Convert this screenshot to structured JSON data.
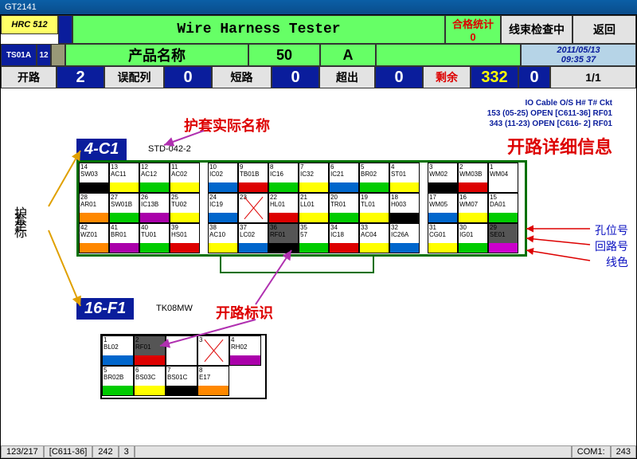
{
  "title_bar": "GT2141",
  "row1": {
    "hrc": "HRC 512",
    "tester": "Wire Harness Tester",
    "pass_lbl": "合格统计",
    "pass_val": "0",
    "status": "线束检查中",
    "back": "返回"
  },
  "row2": {
    "ts": "TS01A",
    "tsno": "12",
    "prod_lbl": "产品名称",
    "prod_val": "50",
    "prod_amp": "A",
    "date": "2011/05/13",
    "time": "09:35 37"
  },
  "stats": {
    "open_lbl": "开路",
    "open": "2",
    "miswire_lbl": "误配列",
    "miswire": "0",
    "short_lbl": "短路",
    "short": "0",
    "extra_lbl": "超出",
    "extra": "0",
    "remain_lbl": "剩余",
    "remain": "332",
    "remain2": "0",
    "page": "1/1"
  },
  "annotations": {
    "sheath_name": "护套实际名称",
    "sheath_coord": "护套坐标",
    "open_detail": "开路详细信息",
    "open_mark": "开路标识",
    "hole_no": "孔位号",
    "circuit_no": "回路号",
    "wire_color": "线色"
  },
  "diag": {
    "hdr": "IO  Cable  O/S    H# T#  Ckt",
    "l1": "153 (05-25) OPEN  [C611-36] RF01",
    "l2": "343 (11-23) OPEN  [C616- 2] RF01"
  },
  "conn1": {
    "coord": "4-C1",
    "part": "STD-042-2"
  },
  "conn2": {
    "coord": "16-F1",
    "part": "TK08MW"
  },
  "pins1": [
    {
      "n": "14",
      "c": "SW03",
      "col": "#000"
    },
    {
      "n": "13",
      "c": "AC11",
      "col": "#ff0"
    },
    {
      "n": "12",
      "c": "AC12",
      "col": "#0c0"
    },
    {
      "n": "11",
      "c": "AC02",
      "col": "#ff0"
    },
    {
      "n": "10",
      "c": "IC02",
      "col": "#06c"
    },
    {
      "n": "9",
      "c": "TB01B",
      "col": "#d00"
    },
    {
      "n": "8",
      "c": "IC16",
      "col": "#0c0"
    },
    {
      "n": "7",
      "c": "IC32",
      "col": "#ff0"
    },
    {
      "n": "6",
      "c": "IC21",
      "col": "#06c"
    },
    {
      "n": "5",
      "c": "BR02",
      "col": "#0c0"
    },
    {
      "n": "4",
      "c": "ST01",
      "col": "#ff0"
    },
    {
      "n": "3",
      "c": "WM02",
      "col": "#000"
    },
    {
      "n": "2",
      "c": "WM03B",
      "col": "#d00"
    },
    {
      "n": "1",
      "c": "WM04",
      "col": "#fff"
    },
    {
      "n": "28",
      "c": "AR01",
      "col": "#f80"
    },
    {
      "n": "27",
      "c": "SW01B",
      "col": "#0c0"
    },
    {
      "n": "26",
      "c": "IC13B",
      "col": "#a0a"
    },
    {
      "n": "25",
      "c": "TU02",
      "col": "#ff0"
    },
    {
      "n": "24",
      "c": "IC19",
      "col": "#06c"
    },
    {
      "n": "23",
      "c": "",
      "col": "#fff",
      "x": true
    },
    {
      "n": "22",
      "c": "HL01",
      "col": "#d00"
    },
    {
      "n": "21",
      "c": "LL01",
      "col": "#ff0"
    },
    {
      "n": "20",
      "c": "TR01",
      "col": "#0c0"
    },
    {
      "n": "19",
      "c": "TL01",
      "col": "#ff0"
    },
    {
      "n": "18",
      "c": "H003",
      "col": "#000"
    },
    {
      "n": "17",
      "c": "WM05",
      "col": "#06c"
    },
    {
      "n": "16",
      "c": "WM07",
      "col": "#ff0"
    },
    {
      "n": "15",
      "c": "DA01",
      "col": "#0c0"
    },
    {
      "n": "42",
      "c": "WZ01",
      "col": "#f80"
    },
    {
      "n": "41",
      "c": "BR01",
      "col": "#a0a"
    },
    {
      "n": "40",
      "c": "TU01",
      "col": "#0c0"
    },
    {
      "n": "39",
      "c": "HS01",
      "col": "#d00"
    },
    {
      "n": "38",
      "c": "AC10",
      "col": "#ff0"
    },
    {
      "n": "37",
      "c": "LC02",
      "col": "#06c"
    },
    {
      "n": "36",
      "c": "RF01",
      "col": "#000",
      "mark": true
    },
    {
      "n": "35",
      "c": "57",
      "col": "#0c0"
    },
    {
      "n": "34",
      "c": "IC18",
      "col": "#d00"
    },
    {
      "n": "33",
      "c": "AC04",
      "col": "#ff0"
    },
    {
      "n": "32",
      "c": "IC26A",
      "col": "#06c"
    },
    {
      "n": "31",
      "c": "CG01",
      "col": "#ff0"
    },
    {
      "n": "30",
      "c": "IG01",
      "col": "#0c0"
    },
    {
      "n": "29",
      "c": "SE01",
      "col": "#c0c",
      "mark": true
    }
  ],
  "pins2": [
    {
      "n": "1",
      "c": "BL02",
      "col": "#06c"
    },
    {
      "n": "2",
      "c": "RF01",
      "col": "#d00",
      "mark": true
    },
    {
      "n": "",
      "c": "",
      "col": "#fff"
    },
    {
      "n": "3",
      "c": "",
      "col": "#fff",
      "x": true
    },
    {
      "n": "4",
      "c": "RH02",
      "col": "#a0a"
    },
    {
      "n": "5",
      "c": "BR02B",
      "col": "#0c0"
    },
    {
      "n": "6",
      "c": "BS03C",
      "col": "#ff0"
    },
    {
      "n": "7",
      "c": "BS01C",
      "col": "#000"
    },
    {
      "n": "8",
      "c": "E17",
      "col": "#f80"
    }
  ],
  "statusbar": {
    "a": "123/217",
    "b": "[C611-36]",
    "c": "242",
    "d": "3",
    "com": "COM1:",
    "baud": "243"
  }
}
